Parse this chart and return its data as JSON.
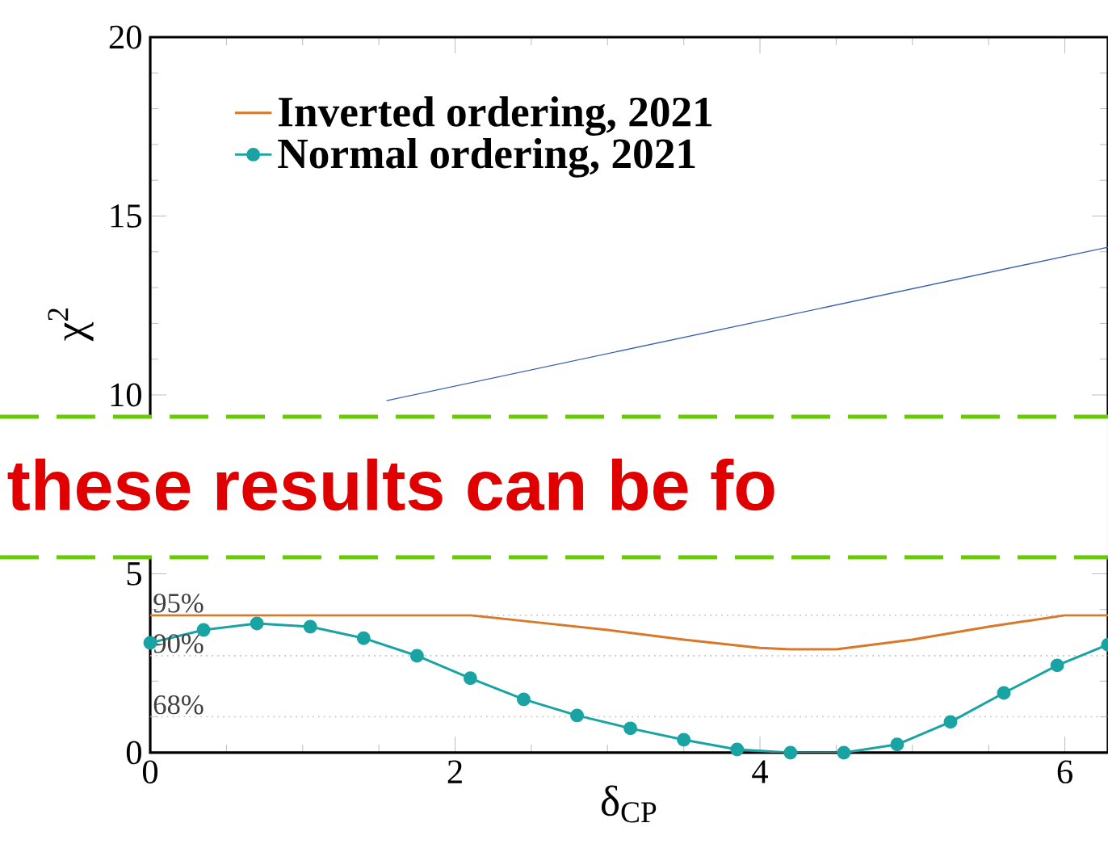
{
  "chart_data": {
    "type": "line",
    "xlabel": "δ$_{CP}$",
    "ylabel": "χ$^{2}$",
    "xlim": [
      0,
      6.283
    ],
    "ylim": [
      0,
      20
    ],
    "xticks": [
      0,
      2,
      4,
      6
    ],
    "yticks": [
      0,
      5,
      10,
      15,
      20
    ],
    "legend": "top left",
    "line_style": "solid",
    "series": [
      {
        "name": "Inverted ordering, 2021",
        "color": "#d9782a",
        "marker": "none",
        "x": [
          0,
          1,
          2,
          2.1,
          2.5,
          3,
          3.5,
          4,
          4.2,
          4.5,
          5,
          5.5,
          6,
          6.283
        ],
        "values": [
          3.84,
          3.84,
          3.84,
          3.84,
          3.66,
          3.43,
          3.16,
          2.93,
          2.89,
          2.89,
          3.16,
          3.52,
          3.84,
          3.84
        ]
      },
      {
        "name": "Normal ordering, 2021",
        "color": "#1aa3a3",
        "marker": "circle",
        "x": [
          0,
          0.35,
          0.7,
          1.05,
          1.4,
          1.75,
          2.1,
          2.45,
          2.8,
          3.15,
          3.5,
          3.85,
          4.2,
          4.55,
          4.9,
          5.25,
          5.6,
          5.95,
          6.283
        ],
        "values": [
          3.07,
          3.43,
          3.61,
          3.52,
          3.2,
          2.71,
          2.08,
          1.49,
          1.04,
          0.68,
          0.36,
          0.09,
          0,
          0,
          0.23,
          0.86,
          1.67,
          2.44,
          3.02
        ]
      },
      {
        "color": "#3a62b0",
        "marker": "none",
        "x": [
          1.55,
          6.283
        ],
        "values": [
          9.84,
          14.13
        ]
      }
    ],
    "ref_lines": [
      {
        "axis": "y",
        "value": 3.84,
        "color": "#bbbbbb",
        "line_style": "dotted"
      },
      {
        "axis": "y",
        "value": 2.71,
        "color": "#bbbbbb",
        "line_style": "dotted"
      },
      {
        "axis": "y",
        "value": 1.0,
        "color": "#bbbbbb",
        "line_style": "dotted"
      }
    ],
    "annotations": [
      "these results can be fo",
      {
        "text": "95%",
        "y": 3.84
      },
      {
        "text": "90%",
        "y": 2.71
      },
      {
        "text": "68%",
        "y": 1.0
      }
    ]
  }
}
